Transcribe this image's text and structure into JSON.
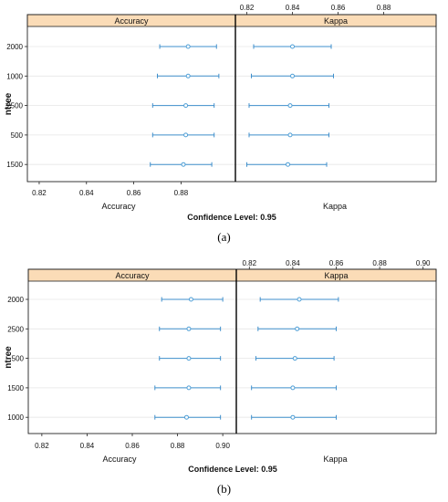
{
  "figure": {
    "panels": [
      {
        "caption": "(a)"
      },
      {
        "caption": "(b)"
      }
    ]
  },
  "chart_data": [
    {
      "type": "dotplot",
      "title": "",
      "strip_labels": [
        "Accuracy",
        "Kappa"
      ],
      "ylabel": "ntree",
      "xlabel_left": "Accuracy",
      "xlabel_right": "Kappa",
      "footer": "Confidence Level: 0.95",
      "categories": [
        "2000",
        "1000",
        "2500",
        "500",
        "1500"
      ],
      "accuracy": {
        "xlim": [
          0.815,
          0.903
        ],
        "ticks": [
          "0.82",
          "0.84",
          "0.86",
          "0.88"
        ],
        "tick_values": [
          0.82,
          0.84,
          0.86,
          0.88
        ],
        "estimate": [
          0.883,
          0.883,
          0.882,
          0.882,
          0.881
        ],
        "lower": [
          0.871,
          0.87,
          0.868,
          0.868,
          0.867
        ],
        "upper": [
          0.895,
          0.896,
          0.894,
          0.894,
          0.893
        ]
      },
      "kappa": {
        "xlim": [
          0.815,
          0.903
        ],
        "ticks": [
          "0.82",
          "0.84",
          "0.86",
          "0.88"
        ],
        "tick_values": [
          0.82,
          0.84,
          0.86,
          0.88
        ],
        "estimate": [
          0.84,
          0.84,
          0.839,
          0.839,
          0.838
        ],
        "lower": [
          0.823,
          0.822,
          0.821,
          0.821,
          0.82
        ],
        "upper": [
          0.857,
          0.858,
          0.856,
          0.856,
          0.855
        ]
      }
    },
    {
      "type": "dotplot",
      "title": "",
      "strip_labels": [
        "Accuracy",
        "Kappa"
      ],
      "ylabel": "ntree",
      "xlabel_left": "Accuracy",
      "xlabel_right": "Kappa",
      "footer": "Confidence Level: 0.95",
      "categories": [
        "2000",
        "2500",
        "500",
        "1500",
        "1000"
      ],
      "accuracy": {
        "xlim": [
          0.814,
          0.906
        ],
        "ticks": [
          "0.82",
          "0.84",
          "0.86",
          "0.88",
          "0.90"
        ],
        "tick_values": [
          0.82,
          0.84,
          0.86,
          0.88,
          0.9
        ],
        "estimate": [
          0.886,
          0.885,
          0.885,
          0.885,
          0.884
        ],
        "lower": [
          0.873,
          0.872,
          0.872,
          0.87,
          0.87
        ],
        "upper": [
          0.9,
          0.899,
          0.899,
          0.899,
          0.899
        ]
      },
      "kappa": {
        "xlim": [
          0.814,
          0.906
        ],
        "ticks": [
          "0.82",
          "0.84",
          "0.86",
          "0.88",
          "0.90"
        ],
        "tick_values": [
          0.82,
          0.84,
          0.86,
          0.88,
          0.9
        ],
        "estimate": [
          0.843,
          0.842,
          0.841,
          0.84,
          0.84
        ],
        "lower": [
          0.825,
          0.824,
          0.823,
          0.821,
          0.821
        ],
        "upper": [
          0.861,
          0.86,
          0.859,
          0.86,
          0.86
        ]
      }
    }
  ],
  "colors": {
    "strip_fill": "#fbdcb7",
    "point": "#4f9fd6",
    "interval": "#3f8fcc",
    "gridline": "#e6e6e6",
    "frame": "#222222",
    "divider": "#000000",
    "text": "#111111"
  }
}
